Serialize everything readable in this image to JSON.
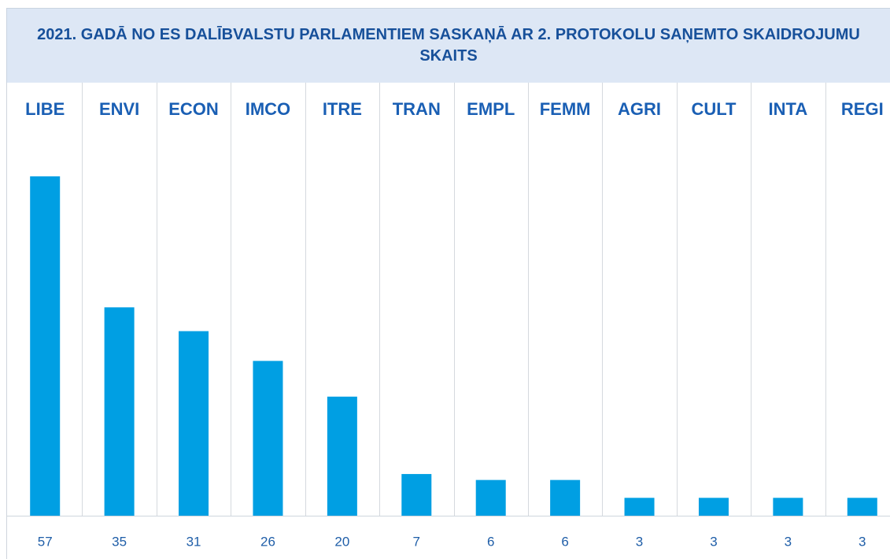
{
  "chart_data": {
    "type": "bar",
    "title": "2021. GADĀ NO ES DALĪBVALSTU PARLAMENTIEM SASKAŅĀ AR 2. PROTOKOLU SAŅEMTO SKAIDROJUMU SKAITS",
    "categories": [
      "LIBE",
      "ENVI",
      "ECON",
      "IMCO",
      "ITRE",
      "TRAN",
      "EMPL",
      "FEMM",
      "AGRI",
      "CULT",
      "INTA",
      "REGI"
    ],
    "values": [
      57,
      35,
      31,
      26,
      20,
      7,
      6,
      6,
      3,
      3,
      3,
      3
    ],
    "color": "#009fe3"
  }
}
